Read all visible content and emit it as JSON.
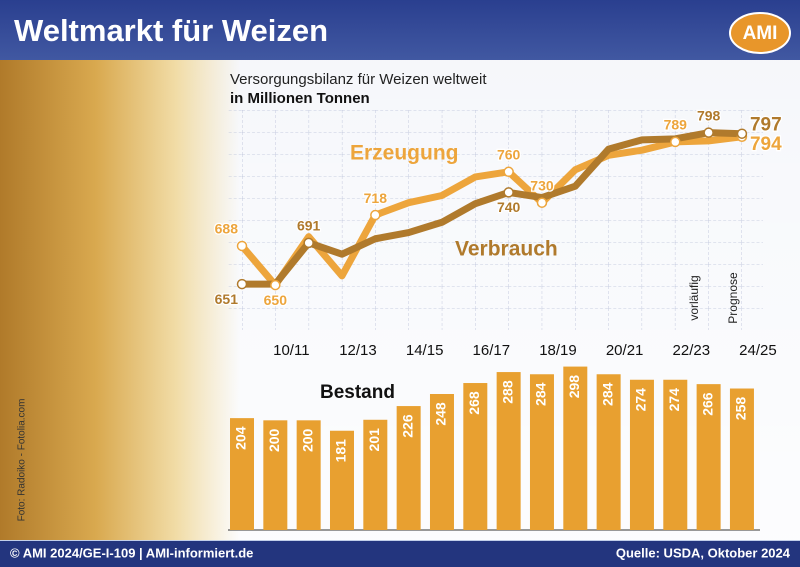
{
  "header": {
    "title": "Weltmarkt für Weizen",
    "logo": "AMI",
    "photo_credit": "Foto: Radoiko - Fotolia.com"
  },
  "footer": {
    "left": "© AMI 2024/GE-I-109 | AMI-informiert.de",
    "right": "Quelle: USDA, Oktober 2024"
  },
  "chart_data": [
    {
      "type": "line",
      "title": "Versorgungsbilanz für Weizen weltweit",
      "subtitle": "in Millionen Tonnen",
      "categories": [
        null,
        "10/11",
        null,
        "12/13",
        null,
        "14/15",
        null,
        "16/17",
        null,
        "18/19",
        null,
        "20/21",
        null,
        "22/23",
        null,
        "24/25"
      ],
      "ylim": [
        620,
        820
      ],
      "series": [
        {
          "name": "Erzeugung",
          "color": "#eda53c",
          "values": [
            688,
            650,
            697,
            659,
            718,
            730,
            737,
            755,
            760,
            730,
            762,
            776,
            781,
            789,
            790,
            794
          ],
          "labeled": [
            0,
            1,
            4,
            8,
            9,
            13,
            15
          ]
        },
        {
          "name": "Verbrauch",
          "color": "#b07a2c",
          "values": [
            651,
            651,
            691,
            680,
            695,
            701,
            711,
            729,
            740,
            735,
            746,
            782,
            791,
            792,
            798,
            797
          ],
          "labeled": [
            0,
            2,
            8,
            14,
            15
          ]
        }
      ],
      "annotations": [
        {
          "index": 14,
          "text": "vorläufig"
        },
        {
          "index": 15,
          "text": "Prognose"
        }
      ]
    },
    {
      "type": "bar",
      "title": "Bestand",
      "color": "#e8a030",
      "ylim": [
        0,
        310
      ],
      "values": [
        204,
        200,
        200,
        181,
        201,
        226,
        248,
        268,
        288,
        284,
        298,
        284,
        274,
        274,
        266,
        258
      ]
    }
  ]
}
